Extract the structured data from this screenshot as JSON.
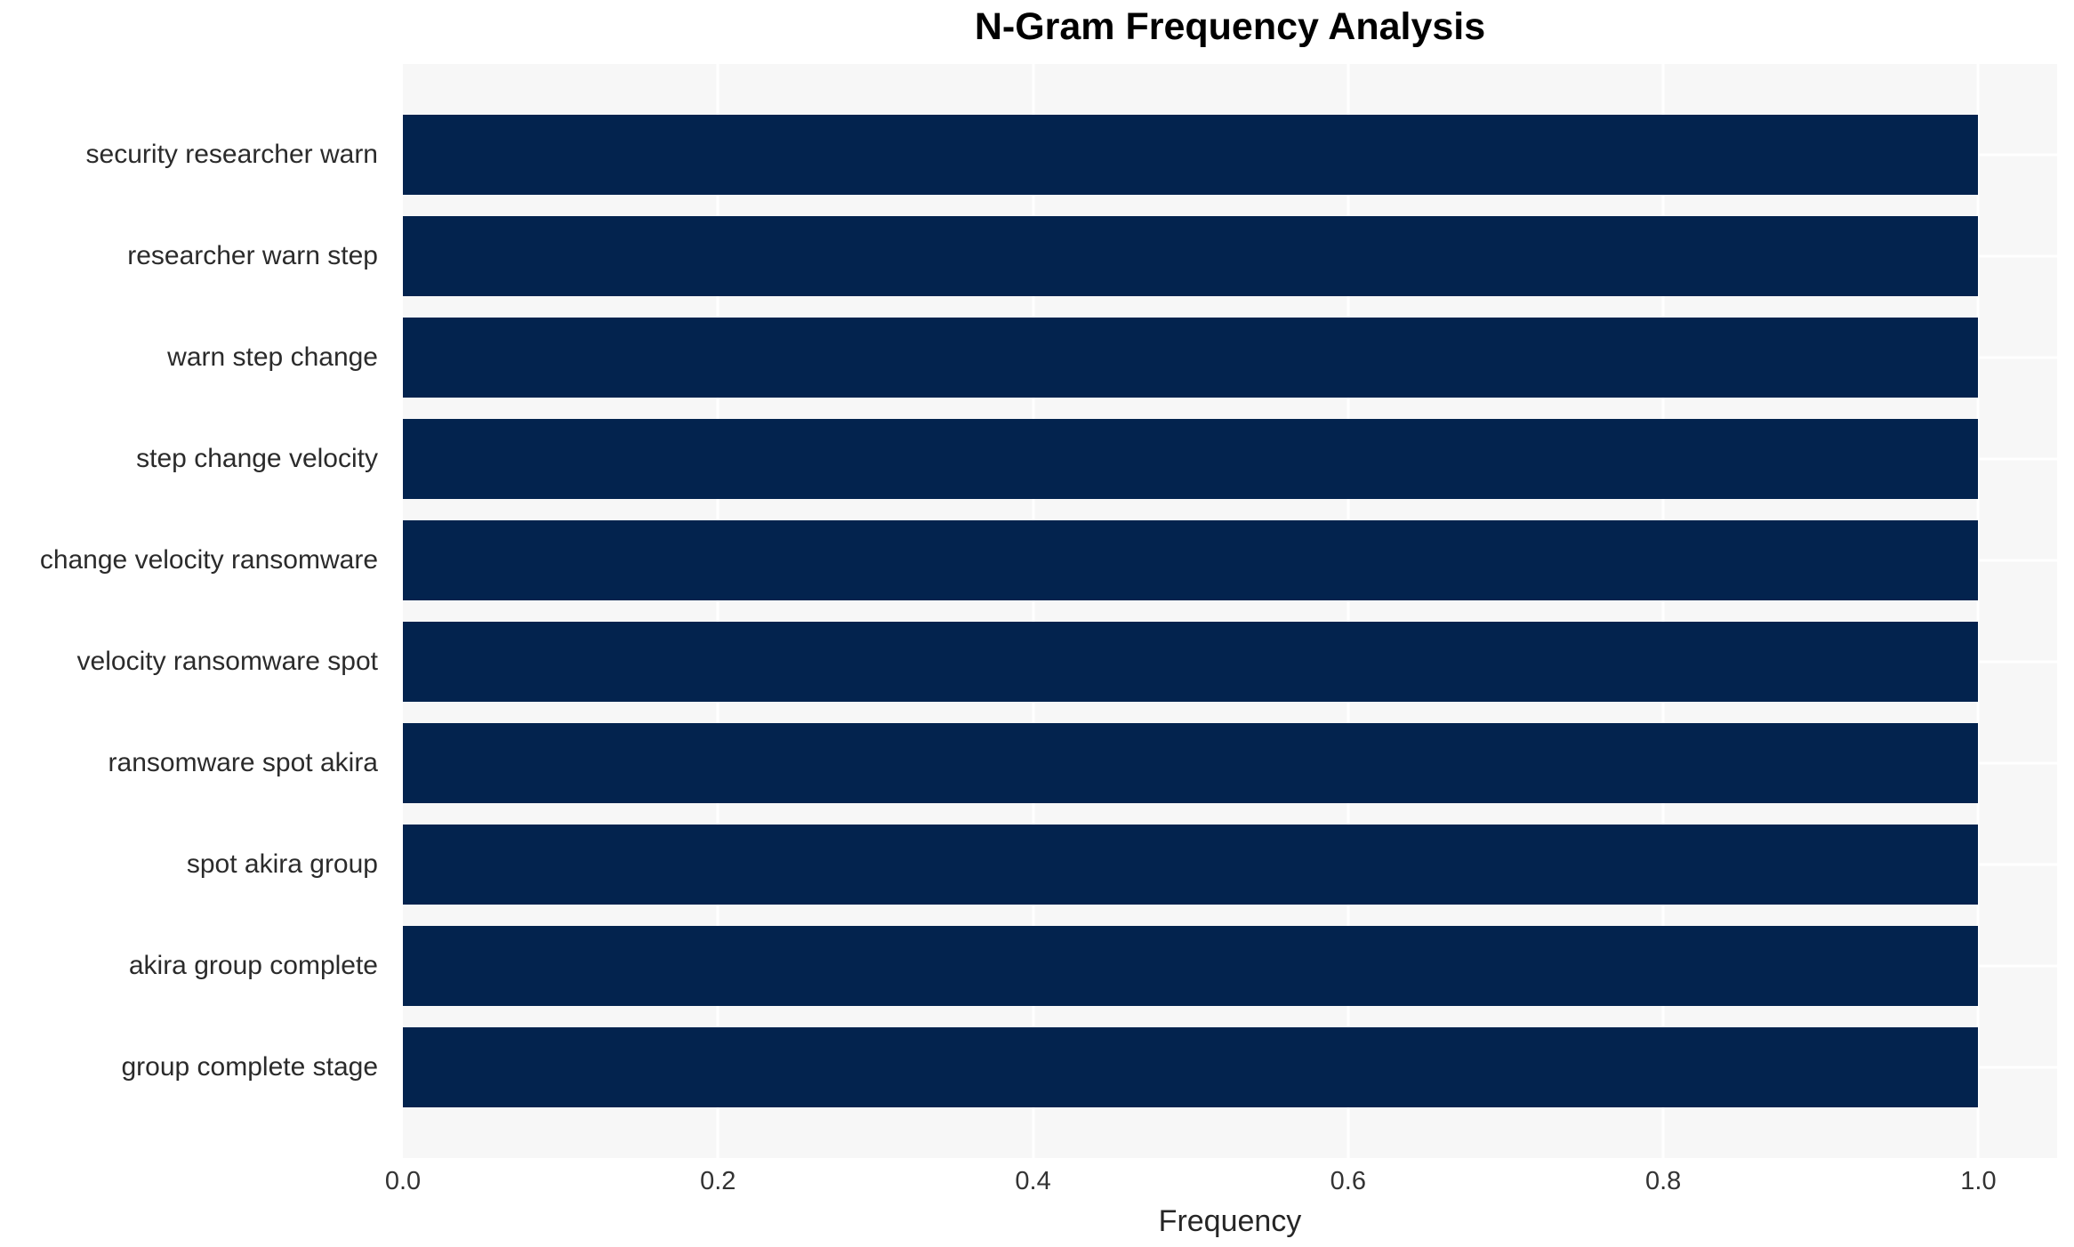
{
  "chart_data": {
    "type": "bar",
    "orientation": "horizontal",
    "title": "N-Gram Frequency Analysis",
    "xlabel": "Frequency",
    "ylabel": "",
    "categories": [
      "security researcher warn",
      "researcher warn step",
      "warn step change",
      "step change velocity",
      "change velocity ransomware",
      "velocity ransomware spot",
      "ransomware spot akira",
      "spot akira group",
      "akira group complete",
      "group complete stage"
    ],
    "values": [
      1.0,
      1.0,
      1.0,
      1.0,
      1.0,
      1.0,
      1.0,
      1.0,
      1.0,
      1.0
    ],
    "xlim": [
      0,
      1.05
    ],
    "xticks": [
      0.0,
      0.2,
      0.4,
      0.6,
      0.8,
      1.0
    ],
    "xtick_labels": [
      "0.0",
      "0.2",
      "0.4",
      "0.6",
      "0.8",
      "1.0"
    ],
    "grid": true,
    "legend_position": "none",
    "colors": {
      "bar": "#03234e",
      "plot_background": "#f7f7f7",
      "figure_background": "#ffffff",
      "grid": "#ffffff",
      "title_text": "#000000",
      "tick_text": "#333333",
      "label_text": "#2b2b2b",
      "axis_label_text": "#262626"
    }
  }
}
